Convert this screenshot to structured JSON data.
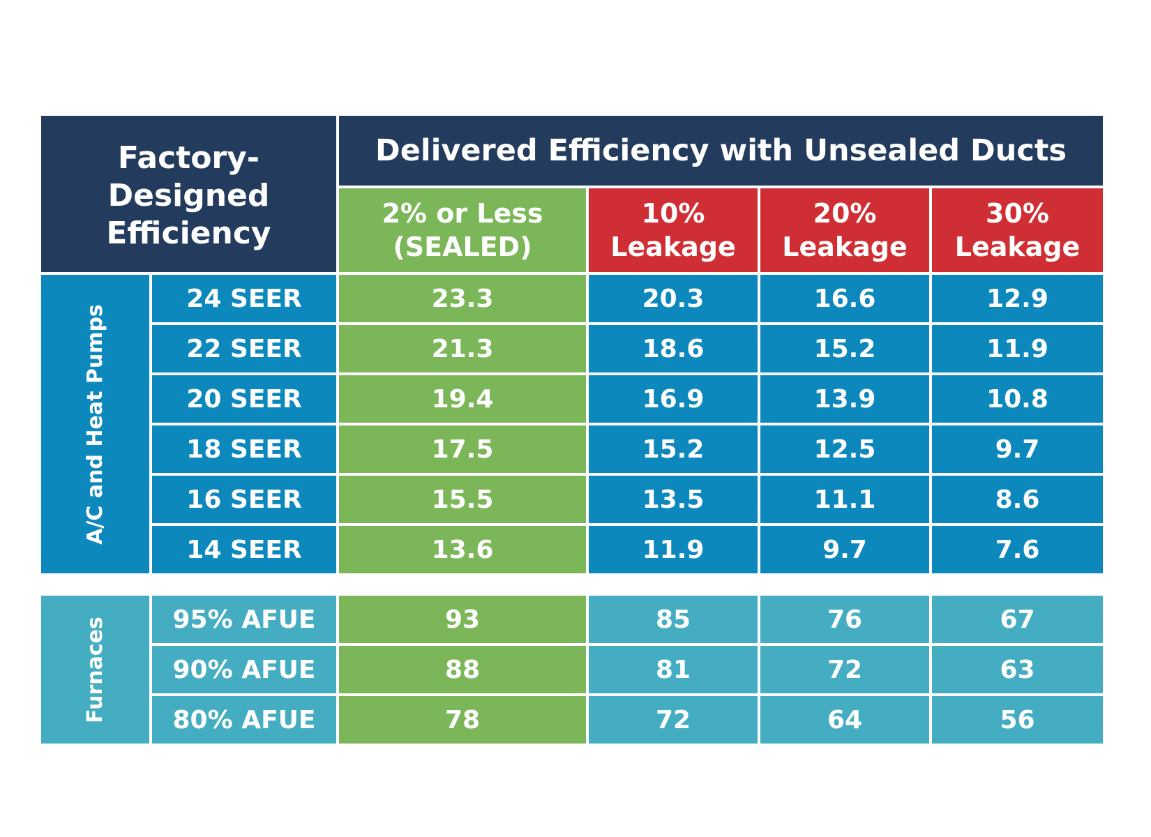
{
  "chart_data": {
    "type": "table",
    "title": "",
    "header": {
      "factory": "Factory-\nDesigned\nEfficiency",
      "delivered": "Delivered Efficiency with Unsealed Ducts"
    },
    "columns": [
      "2% or Less\n(SEALED)",
      "10%\nLeakage",
      "20%\nLeakage",
      "30%\nLeakage"
    ],
    "groups": [
      {
        "name": "A/C and Heat Pumps",
        "rows": [
          {
            "label": "24 SEER",
            "values": [
              "23.3",
              "20.3",
              "16.6",
              "12.9"
            ]
          },
          {
            "label": "22 SEER",
            "values": [
              "21.3",
              "18.6",
              "15.2",
              "11.9"
            ]
          },
          {
            "label": "20 SEER",
            "values": [
              "19.4",
              "16.9",
              "13.9",
              "10.8"
            ]
          },
          {
            "label": "18 SEER",
            "values": [
              "17.5",
              "15.2",
              "12.5",
              "9.7"
            ]
          },
          {
            "label": "16 SEER",
            "values": [
              "15.5",
              "13.5",
              "11.1",
              "8.6"
            ]
          },
          {
            "label": "14 SEER",
            "values": [
              "13.6",
              "11.9",
              "9.7",
              "7.6"
            ]
          }
        ]
      },
      {
        "name": "Furnaces",
        "rows": [
          {
            "label": "95% AFUE",
            "values": [
              "93",
              "85",
              "76",
              "67"
            ]
          },
          {
            "label": "90% AFUE",
            "values": [
              "88",
              "81",
              "72",
              "63"
            ]
          },
          {
            "label": "80% AFUE",
            "values": [
              "78",
              "72",
              "64",
              "56"
            ]
          }
        ]
      }
    ],
    "colors": {
      "navy": "#233b5c",
      "sealed_green": "#7bb758",
      "leak_red": "#cf2f34",
      "ac_blue": "#0c88bd",
      "furnace_teal": "#44adc1"
    }
  }
}
